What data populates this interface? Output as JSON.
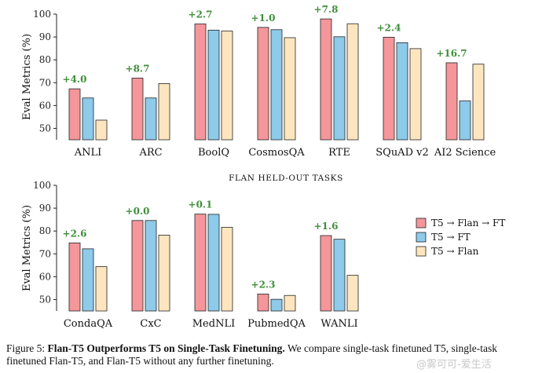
{
  "colors": {
    "flan_ft": "#f4969a",
    "ft": "#8ecae9",
    "flan": "#fde6bf",
    "delta": "#3f8f3a"
  },
  "chart_data": [
    {
      "type": "bar",
      "title": "",
      "ylabel": "Eval Metrics (%)",
      "ylim": [
        45,
        100
      ],
      "yticks": [
        50,
        60,
        70,
        80,
        90,
        100
      ],
      "categories": [
        "ANLI",
        "ARC",
        "BoolQ",
        "CosmosQA",
        "RTE",
        "SQuAD v2",
        "AI2 Science"
      ],
      "series": [
        {
          "name": "T5 → Flan → FT",
          "values": [
            67.3,
            72.0,
            95.7,
            94.2,
            97.9,
            89.9,
            78.7
          ]
        },
        {
          "name": "T5 → FT",
          "values": [
            63.3,
            63.3,
            93.0,
            93.2,
            90.1,
            87.5,
            62.0
          ]
        },
        {
          "name": "T5 → Flan",
          "values": [
            53.6,
            69.6,
            92.6,
            89.7,
            95.8,
            84.9,
            78.1
          ]
        }
      ],
      "deltas": [
        "+4.0",
        "+8.7",
        "+2.7",
        "+1.0",
        "+7.8",
        "+2.4",
        "+16.7"
      ]
    },
    {
      "type": "bar",
      "title": "Flan Held-Out Tasks",
      "ylabel": "Eval Metrics (%)",
      "ylim": [
        45,
        100
      ],
      "yticks": [
        50,
        60,
        70,
        80,
        90,
        100
      ],
      "categories": [
        "CondaQA",
        "CxC",
        "MedNLI",
        "PubmedQA",
        "WANLI"
      ],
      "series": [
        {
          "name": "T5 → Flan → FT",
          "values": [
            74.8,
            84.6,
            87.4,
            52.4,
            78.0
          ]
        },
        {
          "name": "T5 → FT",
          "values": [
            72.2,
            84.6,
            87.3,
            50.1,
            76.4
          ]
        },
        {
          "name": "T5 → Flan",
          "values": [
            64.4,
            78.2,
            81.6,
            51.8,
            60.6
          ]
        }
      ],
      "deltas": [
        "+2.6",
        "+0.0",
        "+0.1",
        "+2.3",
        "+1.6"
      ]
    }
  ],
  "legend": [
    {
      "label": "T5 → Flan → FT",
      "color": "#f4969a"
    },
    {
      "label": "T5 → FT",
      "color": "#8ecae9"
    },
    {
      "label": "T5 → Flan",
      "color": "#fde6bf"
    }
  ],
  "caption": {
    "prefix": "Figure 5: ",
    "bold": "Flan-T5 Outperforms T5 on Single-Task Finetuning.",
    "rest": " We compare single-task finetuned T5, single-task finetuned Flan-T5, and Flan-T5 without any further finetuning."
  },
  "watermark": "@雾可可-爱生活"
}
